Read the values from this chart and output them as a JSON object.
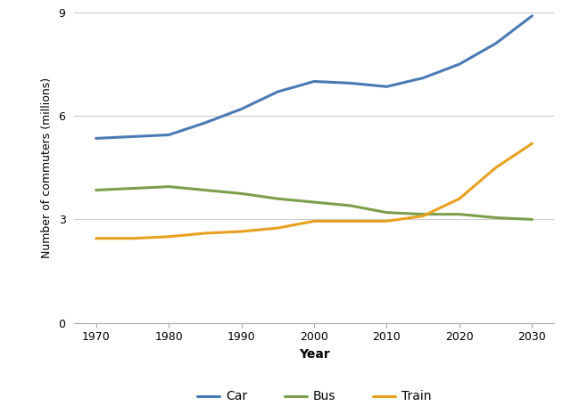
{
  "years": [
    1970,
    1975,
    1980,
    1985,
    1990,
    1995,
    2000,
    2005,
    2010,
    2015,
    2020,
    2025,
    2030
  ],
  "car": [
    5.35,
    5.4,
    5.45,
    5.8,
    6.2,
    6.7,
    7.0,
    6.95,
    6.85,
    7.1,
    7.5,
    8.1,
    8.9
  ],
  "bus": [
    3.85,
    3.9,
    3.95,
    3.85,
    3.75,
    3.6,
    3.5,
    3.4,
    3.2,
    3.15,
    3.15,
    3.05,
    3.0
  ],
  "train": [
    2.45,
    2.45,
    2.5,
    2.6,
    2.65,
    2.75,
    2.95,
    2.95,
    2.95,
    3.1,
    3.6,
    4.5,
    5.2
  ],
  "car_color": "#4a7ab5",
  "bus_color": "#7a9e4a",
  "train_color": "#e8a020",
  "background_color": "#ffffff",
  "ylabel": "Number of commuters (millions)",
  "xlabel": "Year",
  "ylim": [
    0,
    9
  ],
  "yticks": [
    0,
    3,
    6,
    9
  ],
  "xticks": [
    1970,
    1980,
    1990,
    2000,
    2010,
    2020,
    2030
  ],
  "legend_labels": [
    "Car",
    "Bus",
    "Train"
  ],
  "line_width": 2.2,
  "grid_color": "#cccccc"
}
